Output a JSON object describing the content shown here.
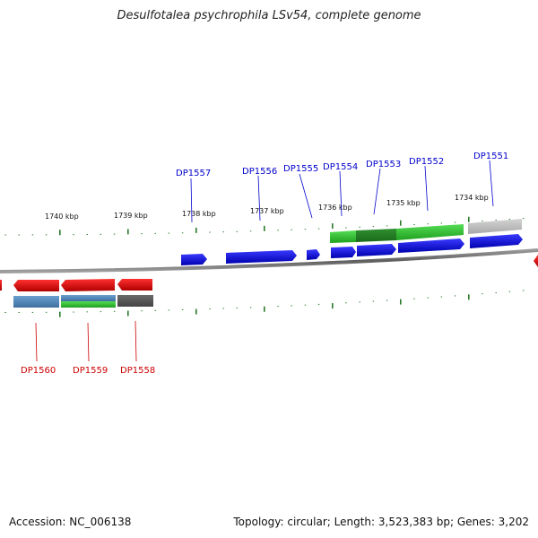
{
  "title": "Desulfotalea psychrophila LSv54, complete genome",
  "footer": {
    "accession": "Accession: NC_006138",
    "summary": "Topology: circular; Length: 3,523,383 bp; Genes: 3,202"
  },
  "scale_labels": [
    "1740 kbp",
    "1739 kbp",
    "1738 kbp",
    "1737 kbp",
    "1736 kbp",
    "1735 kbp",
    "1734 kbp"
  ],
  "gene_labels_top": [
    "DP1557",
    "DP1556",
    "DP1555",
    "DP1554",
    "DP1553",
    "DP1552",
    "DP1551"
  ],
  "gene_labels_bottom": [
    "DP1560",
    "DP1559",
    "DP1558"
  ],
  "colors": {
    "forward_gene": "#0000ee",
    "reverse_gene": "#ee0000",
    "top_label": "#0000cc",
    "bottom_label": "#cc0000",
    "tick": "#2a7a2a",
    "backbone": "#777777"
  }
}
